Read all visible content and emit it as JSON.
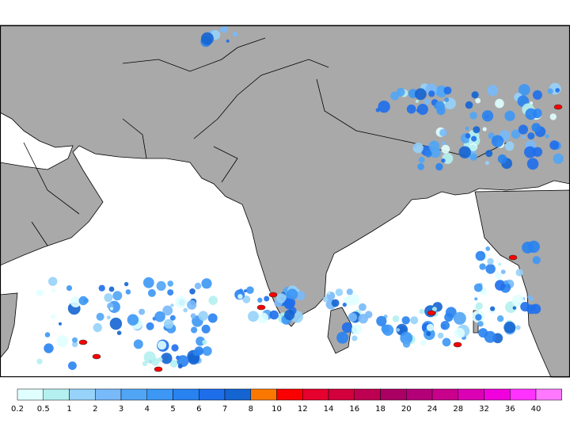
{
  "colorbar": {
    "ticks": [
      0.2,
      0.5,
      1,
      2,
      3,
      4,
      5,
      6,
      7,
      8,
      10,
      12,
      14,
      16,
      18,
      20,
      24,
      28,
      32,
      36,
      40
    ],
    "colors": [
      "#e0ffff",
      "#b4f0f0",
      "#96d2fa",
      "#78b9fa",
      "#50a5f5",
      "#3c97f5",
      "#2882f0",
      "#1e6eeb",
      "#1464d2",
      "#fa7800",
      "#fa0000",
      "#e6002d",
      "#d2003c",
      "#be0050",
      "#aa0064",
      "#b40078",
      "#c8008c",
      "#dc00b4",
      "#f000dc",
      "#ff32ff",
      "#ff78ff"
    ]
  }
}
